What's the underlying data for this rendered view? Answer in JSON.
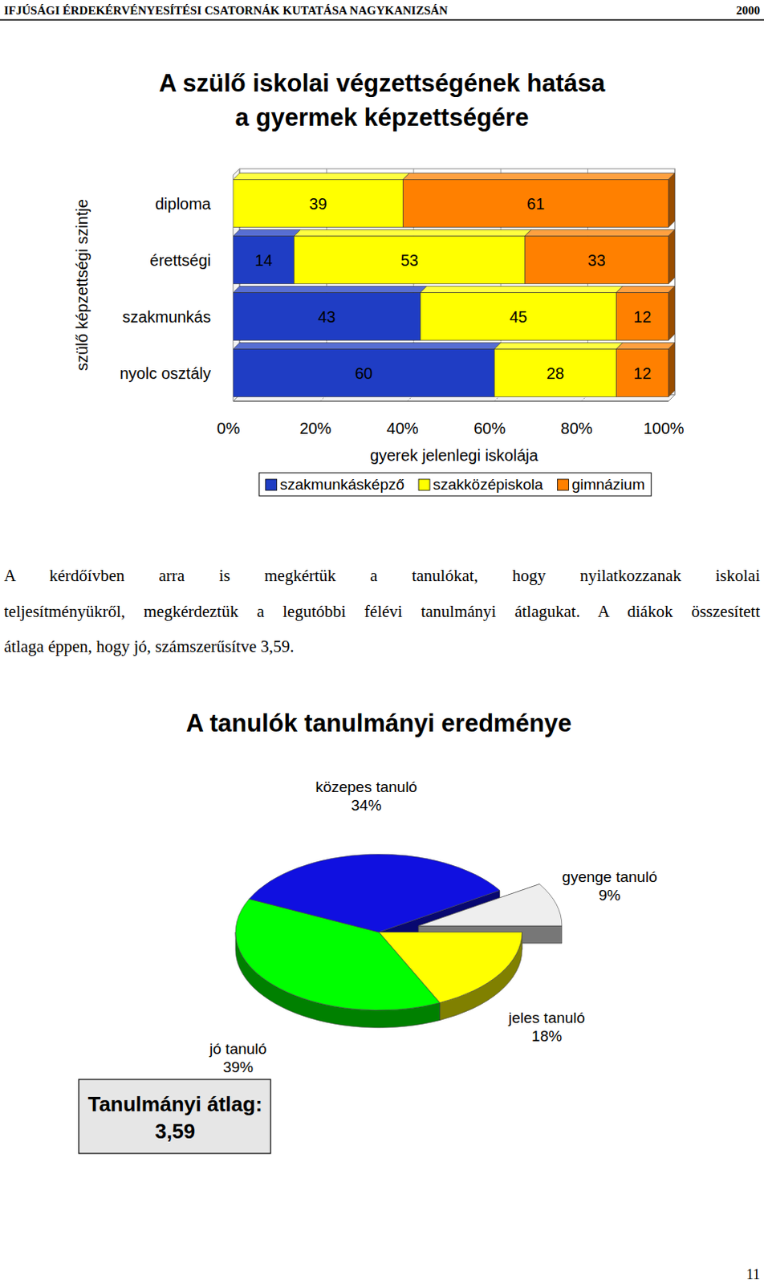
{
  "header": {
    "title": "IFJÚSÁGI ÉRDEKÉRVÉNYESÍTÉSI CSATORNÁK KUTATÁSA NAGYKANIZSÁN",
    "year": "2000"
  },
  "chart_data": [
    {
      "type": "bar",
      "orientation": "horizontal",
      "stacked": true,
      "title": "A szülő iskolai végzettségének hatása\na gyermek képzettségére",
      "x_label": "gyerek jelenlegi iskolája",
      "y_label": "szülő képzettségi szintje",
      "categories": [
        "diploma",
        "érettségi",
        "szakmunkás",
        "nyolc osztály"
      ],
      "series": [
        {
          "name": "szakmunkásképző",
          "color": "#1F3DC4",
          "values": [
            null,
            14,
            43,
            60
          ]
        },
        {
          "name": "szakközépiskola",
          "color": "#FFFF00",
          "values": [
            39,
            53,
            45,
            28
          ]
        },
        {
          "name": "gimnázium",
          "color": "#FF8000",
          "values": [
            61,
            33,
            12,
            12
          ]
        }
      ],
      "xlim": [
        0,
        100
      ],
      "xticks": [
        {
          "value": 0,
          "label": "0%"
        },
        {
          "value": 20,
          "label": "20%"
        },
        {
          "value": 40,
          "label": "40%"
        },
        {
          "value": 60,
          "label": "60%"
        },
        {
          "value": 80,
          "label": "80%"
        },
        {
          "value": 100,
          "label": "100%"
        }
      ],
      "grid": true,
      "legend": "bottom",
      "data_labels": true
    },
    {
      "type": "pie",
      "title": "A tanulók tanulmányi eredménye",
      "categories": [
        "jeles tanuló",
        "jó tanuló",
        "közepes tanuló",
        "gyenge tanuló"
      ],
      "values": [
        18,
        39,
        34,
        9
      ],
      "value_labels": [
        "18%",
        "39%",
        "34%",
        "9%"
      ],
      "colors": [
        "#FFFF00",
        "#00FF00",
        "#1010E0",
        "#EEEEEE"
      ],
      "data_labels": true,
      "annotations": [
        "Tanulmányi átlag:\n3,59"
      ]
    }
  ],
  "paragraph": {
    "lines": [
      "A kérdőívben arra is megkértük a tanulókat, hogy nyilatkozzanak iskolai",
      "teljesítményükről, megkérdeztük a legutóbbi félévi tanulmányi átlagukat. A diákok összesített",
      "átlaga éppen, hogy jó, számszerűsítve 3,59."
    ]
  },
  "page_number": "11"
}
